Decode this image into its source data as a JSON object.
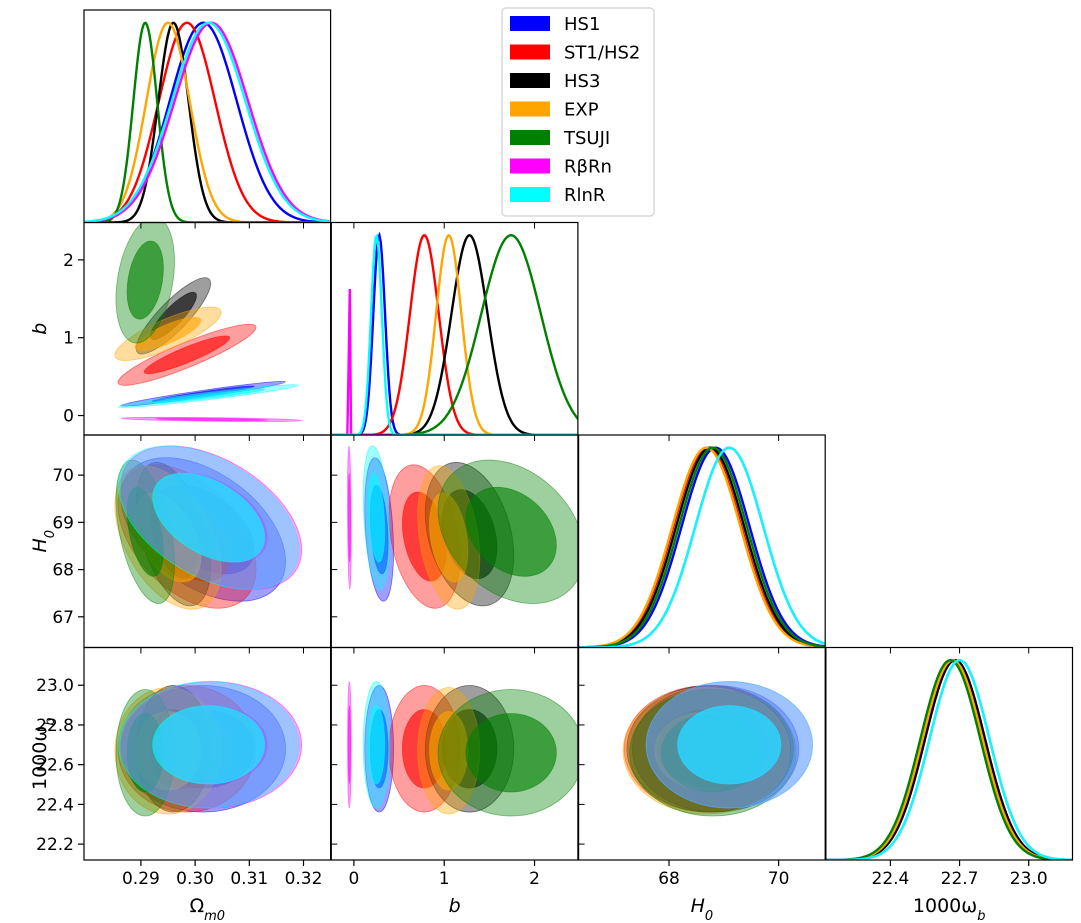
{
  "chart_data": {
    "type": "corner",
    "parameters": [
      {
        "key": "om",
        "label": "Ω_m0",
        "sym": "Ω",
        "sub": "m0",
        "range": [
          0.2795,
          0.325
        ],
        "ticks": [
          0.29,
          0.3,
          0.31,
          0.32
        ],
        "tick_labels": [
          "0.29",
          "0.30",
          "0.31",
          "0.32"
        ]
      },
      {
        "key": "b",
        "label": "b",
        "sym": "b",
        "sub": "",
        "range": [
          -0.25,
          2.48
        ],
        "ticks": [
          0,
          1,
          2
        ],
        "tick_labels": [
          "0",
          "1",
          "2"
        ]
      },
      {
        "key": "h0",
        "label": "H_0",
        "sym": "H",
        "sub": "0",
        "range": [
          66.35,
          70.85
        ],
        "ticks": [
          67,
          68,
          69,
          70
        ],
        "tick_labels": [
          "67",
          "68",
          "69",
          "70"
        ]
      },
      {
        "key": "wb",
        "label": "1000ω_b",
        "sym": "1000ω",
        "sub": "b",
        "range": [
          22.12,
          23.19
        ],
        "ticks": [
          22.2,
          22.4,
          22.6,
          22.8,
          23.0
        ],
        "tick_labels": [
          "22.2",
          "22.4",
          "22.6",
          "22.8",
          "23.0"
        ]
      }
    ],
    "x_tick_labels": {
      "om": [
        "0.29",
        "0.30",
        "0.31",
        "0.32"
      ],
      "b": [
        "0",
        "1",
        "2"
      ],
      "h0": [
        "68",
        "70"
      ],
      "wb": [
        "22.4",
        "22.7",
        "23.0"
      ]
    },
    "x_ticks": {
      "om": [
        0.29,
        0.3,
        0.31,
        0.32
      ],
      "b": [
        0,
        1,
        2
      ],
      "h0": [
        68,
        70
      ],
      "wb": [
        22.4,
        22.7,
        23.0
      ]
    },
    "legend": [
      {
        "name": "HS1",
        "color": "#0000ff"
      },
      {
        "name": "ST1/HS2",
        "color": "#ff0000"
      },
      {
        "name": "HS3",
        "color": "#000000"
      },
      {
        "name": "EXP",
        "color": "#ffa500"
      },
      {
        "name": "TSUJI",
        "color": "#008000"
      },
      {
        "name": "RβRn",
        "color": "#ff00ff"
      },
      {
        "name": "RlnR",
        "color": "#00ffff"
      }
    ],
    "series": [
      {
        "name": "HS1",
        "color": "#0000ff",
        "mean": {
          "om": 0.3015,
          "b": 0.28,
          "h0": 68.85,
          "wb": 22.68
        },
        "sigma": {
          "om": 0.0062,
          "b": 0.065,
          "h0": 0.62,
          "wb": 0.13
        },
        "corr_om_b": 0.96
      },
      {
        "name": "ST1/HS2",
        "color": "#ff0000",
        "mean": {
          "om": 0.2985,
          "b": 0.78,
          "h0": 68.7,
          "wb": 22.68
        },
        "sigma": {
          "om": 0.0052,
          "b": 0.16,
          "h0": 0.62,
          "wb": 0.13
        },
        "corr_om_b": 0.9
      },
      {
        "name": "HS3",
        "color": "#000000",
        "mean": {
          "om": 0.296,
          "b": 1.28,
          "h0": 68.75,
          "wb": 22.68
        },
        "sigma": {
          "om": 0.0028,
          "b": 0.2,
          "h0": 0.62,
          "wb": 0.13
        },
        "corr_om_b": 0.85
      },
      {
        "name": "EXP",
        "color": "#ffa500",
        "mean": {
          "om": 0.295,
          "b": 1.05,
          "h0": 68.68,
          "wb": 22.67
        },
        "sigma": {
          "om": 0.004,
          "b": 0.14,
          "h0": 0.62,
          "wb": 0.13
        },
        "corr_om_b": 0.8
      },
      {
        "name": "TSUJI",
        "color": "#008000",
        "mean": {
          "om": 0.2908,
          "b": 1.74,
          "h0": 68.8,
          "wb": 22.66
        },
        "sigma": {
          "om": 0.0022,
          "b": 0.33,
          "h0": 0.62,
          "wb": 0.13
        },
        "corr_om_b": 0.3
      },
      {
        "name": "RβRn",
        "color": "#ff00ff",
        "mean": {
          "om": 0.303,
          "b": -0.05,
          "h0": 69.1,
          "wb": 22.7
        },
        "sigma": {
          "om": 0.0068,
          "b": 0.006,
          "h0": 0.62,
          "wb": 0.13
        },
        "corr_om_b": -0.95
      },
      {
        "name": "RlnR",
        "color": "#00ffff",
        "mean": {
          "om": 0.3025,
          "b": 0.25,
          "h0": 69.1,
          "wb": 22.7
        },
        "sigma": {
          "om": 0.0068,
          "b": 0.06,
          "h0": 0.62,
          "wb": 0.13
        },
        "corr_om_b": 0.95
      }
    ]
  }
}
